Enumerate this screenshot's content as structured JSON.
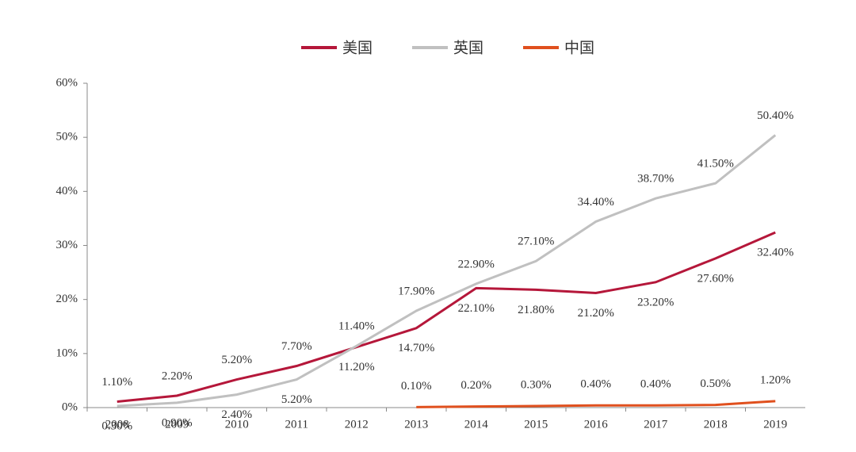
{
  "chart_data": {
    "type": "line",
    "categories": [
      "2008",
      "2009",
      "2010",
      "2011",
      "2012",
      "2013",
      "2014",
      "2015",
      "2016",
      "2017",
      "2018",
      "2019"
    ],
    "series": [
      {
        "name": "美国",
        "color": "#b5173a",
        "values": [
          1.1,
          2.2,
          5.2,
          7.7,
          11.2,
          14.7,
          22.1,
          21.8,
          21.2,
          23.2,
          27.6,
          32.4
        ],
        "value_labels": [
          "1.10%",
          "2.20%",
          "5.20%",
          "7.70%",
          "11.20%",
          "14.70%",
          "22.10%",
          "21.80%",
          "21.20%",
          "23.20%",
          "27.60%",
          "32.40%"
        ]
      },
      {
        "name": "英国",
        "color": "#c0c0c0",
        "values": [
          0.3,
          0.9,
          2.4,
          5.2,
          11.4,
          17.9,
          22.9,
          27.1,
          34.4,
          38.7,
          41.5,
          50.4
        ],
        "value_labels": [
          "0.30%",
          "0.90%",
          "2.40%",
          "5.20%",
          "11.40%",
          "17.90%",
          "22.90%",
          "27.10%",
          "34.40%",
          "38.70%",
          "41.50%",
          "50.40%"
        ]
      },
      {
        "name": "中国",
        "color": "#e0501e",
        "values": [
          null,
          null,
          null,
          null,
          null,
          0.1,
          0.2,
          0.3,
          0.4,
          0.4,
          0.5,
          1.2
        ],
        "value_labels": [
          null,
          null,
          null,
          null,
          null,
          "0.10%",
          "0.20%",
          "0.30%",
          "0.40%",
          "0.40%",
          "0.50%",
          "1.20%"
        ]
      }
    ],
    "ylim": [
      0,
      60
    ],
    "yticks": [
      {
        "value": 0,
        "label": "0%"
      },
      {
        "value": 10,
        "label": "10%"
      },
      {
        "value": 20,
        "label": "20%"
      },
      {
        "value": 30,
        "label": "30%"
      },
      {
        "value": 40,
        "label": "40%"
      },
      {
        "value": 50,
        "label": "50%"
      },
      {
        "value": 60,
        "label": "60%"
      }
    ],
    "legend": "top"
  }
}
